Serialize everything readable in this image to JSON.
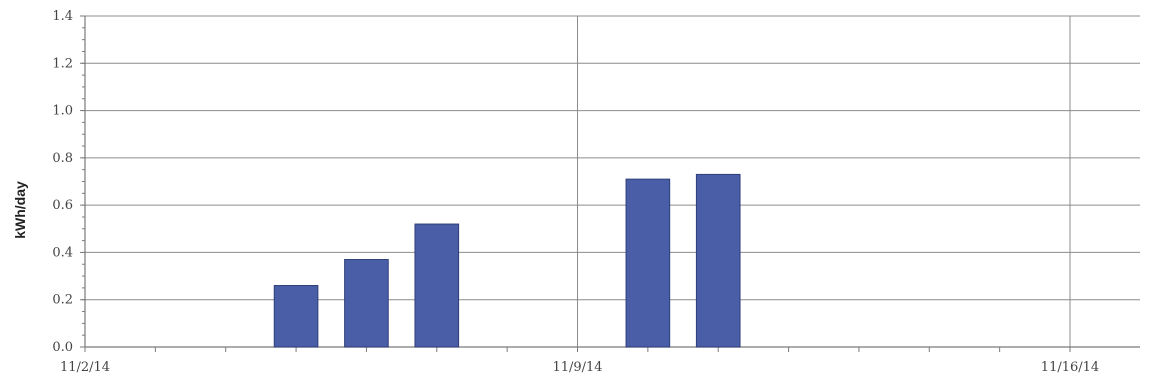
{
  "chart_data": {
    "type": "bar",
    "title": "",
    "xlabel": "",
    "ylabel": "kWh/day",
    "x_ticks": [
      "11/2/14",
      "11/9/14",
      "11/16/14"
    ],
    "x_range": [
      "11/2/14",
      "11/16/14"
    ],
    "y_ticks": [
      "0.0",
      "0.2",
      "0.4",
      "0.6",
      "0.8",
      "1.0",
      "1.2",
      "1.4"
    ],
    "ylim": [
      0,
      1.4
    ],
    "grid": true,
    "legend": "none",
    "bar_color": "#4a5ea8",
    "series": [
      {
        "points": [
          {
            "date": "11/5/14",
            "value": 0.26
          },
          {
            "date": "11/6/14",
            "value": 0.37
          },
          {
            "date": "11/7/14",
            "value": 0.52
          },
          {
            "date": "11/10/14",
            "value": 0.71
          },
          {
            "date": "11/11/14",
            "value": 0.73
          }
        ]
      }
    ]
  }
}
